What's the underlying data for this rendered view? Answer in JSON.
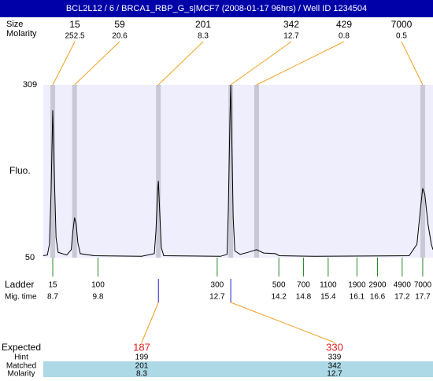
{
  "title": "BCL2L12 / 6 / BRCA1_RBP_G_s|MCF7 (2008-01-17 96hrs) / Well ID 1234504",
  "peaks": {
    "size_label": "Size",
    "molarity_label": "Molarity",
    "sizes": [
      15,
      59,
      201,
      342,
      429,
      7000
    ],
    "molarities": [
      252.5,
      20.6,
      8.3,
      12.7,
      0.8,
      0.5
    ],
    "times": [
      8.7,
      9.23,
      11.27,
      13.03,
      13.66,
      17.7
    ]
  },
  "chart_data": {
    "type": "line",
    "y_label": "Fluo.",
    "color": "#000000",
    "x": [
      8.47,
      8.57,
      8.62,
      8.66,
      8.7,
      8.74,
      8.78,
      8.83,
      9.04,
      9.15,
      9.19,
      9.23,
      9.27,
      9.31,
      9.37,
      9.71,
      10.86,
      11.17,
      11.21,
      11.25,
      11.27,
      11.3,
      11.34,
      11.4,
      12.78,
      12.94,
      12.97,
      13.01,
      13.03,
      13.05,
      13.09,
      13.13,
      13.26,
      13.45,
      13.66,
      13.83,
      14.12,
      14.21,
      15.08,
      17.37,
      17.56,
      17.64,
      17.7,
      17.75,
      17.83,
      17.91,
      17.95
    ],
    "values": [
      53,
      54,
      70,
      150,
      271,
      170,
      80,
      58,
      54,
      62,
      90,
      110,
      100,
      72,
      56,
      53,
      52,
      56,
      90,
      150,
      165,
      120,
      65,
      53,
      52,
      55,
      120,
      260,
      309,
      250,
      110,
      60,
      55,
      58,
      62,
      57,
      56,
      53,
      52,
      53,
      70,
      120,
      154,
      145,
      100,
      70,
      62
    ],
    "xlim": [
      8.47,
      17.95
    ],
    "ylim": [
      50,
      309
    ],
    "yticks": [
      50,
      309
    ]
  },
  "ladder": {
    "label": "Ladder",
    "time_label": "Mig. time",
    "sizes": [
      15,
      100,
      300,
      500,
      700,
      1100,
      1900,
      2900,
      4900,
      7000
    ],
    "times": [
      8.7,
      9.8,
      12.7,
      14.2,
      14.8,
      15.4,
      16.1,
      16.6,
      17.2,
      17.7
    ]
  },
  "expected": {
    "labels": [
      "Expected",
      "Hint",
      "Matched",
      "Molarity"
    ],
    "expected": [
      187,
      330
    ],
    "hint": [
      199,
      339
    ],
    "matched": [
      201,
      342
    ],
    "molarity": [
      8.3,
      12.7
    ]
  }
}
